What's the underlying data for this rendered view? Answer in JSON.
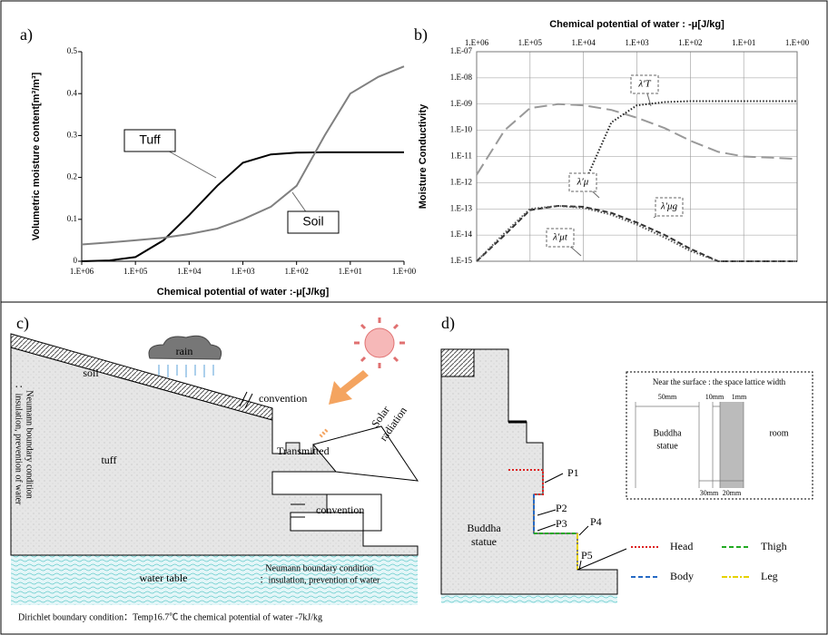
{
  "chart_data": [
    {
      "type": "line",
      "title": "a)",
      "x_label": "Chemical potential of water :-μ[J/kg]",
      "y_label": "Volumetric moisture content[m³/m³]",
      "xscale": "log",
      "xaxis_position": "bottom",
      "grid": false,
      "x": [
        1000000,
        300000,
        100000,
        30000,
        10000,
        3000,
        1000,
        300,
        100,
        30,
        10,
        3,
        1
      ],
      "xlim": [
        1000000,
        1
      ],
      "xticks": [
        {
          "value": 1000000,
          "label": "1.E+06"
        },
        {
          "value": 100000,
          "label": "1.E+05"
        },
        {
          "value": 10000,
          "label": "1.E+04"
        },
        {
          "value": 1000,
          "label": "1.E+03"
        },
        {
          "value": 100,
          "label": "1.E+02"
        },
        {
          "value": 10,
          "label": "1.E+01"
        },
        {
          "value": 1,
          "label": "1.E+00"
        }
      ],
      "ylim": [
        0,
        0.5
      ],
      "yticks": [
        0,
        0.1,
        0.2,
        0.3,
        0.4,
        0.5
      ],
      "series": [
        {
          "name": "Tuff",
          "color": "#000000",
          "dash": "solid",
          "values": [
            0,
            0.002,
            0.01,
            0.05,
            0.11,
            0.18,
            0.235,
            0.255,
            0.259,
            0.26,
            0.26,
            0.26,
            0.26
          ]
        },
        {
          "name": "Soil",
          "color": "#808080",
          "dash": "solid",
          "values": [
            0.04,
            0.045,
            0.05,
            0.056,
            0.065,
            0.078,
            0.1,
            0.13,
            0.18,
            0.3,
            0.4,
            0.44,
            0.465
          ]
        }
      ]
    },
    {
      "type": "line",
      "title": "b)",
      "x_label": "Chemical potential of water : -μ[J/kg]",
      "y_label": "Moisture Conductivity",
      "xscale": "log",
      "yscale": "log",
      "xaxis_position": "top",
      "grid": true,
      "x": [
        1000000,
        300000,
        100000,
        30000,
        10000,
        3000,
        1000,
        300,
        100,
        30,
        10,
        3,
        1
      ],
      "xlim": [
        1000000,
        1
      ],
      "xticks": [
        {
          "value": 1000000,
          "label": "1.E+06"
        },
        {
          "value": 100000,
          "label": "1.E+05"
        },
        {
          "value": 10000,
          "label": "1.E+04"
        },
        {
          "value": 1000,
          "label": "1.E+03"
        },
        {
          "value": 100,
          "label": "1.E+02"
        },
        {
          "value": 10,
          "label": "1.E+01"
        },
        {
          "value": 1,
          "label": "1.E+00"
        }
      ],
      "ylim": [
        1e-15,
        1e-07
      ],
      "yticks": [
        {
          "value": 1e-07,
          "label": "1.E-07"
        },
        {
          "value": 1e-08,
          "label": "1.E-08"
        },
        {
          "value": 1e-09,
          "label": "1.E-09"
        },
        {
          "value": 1e-10,
          "label": "1.E-10"
        },
        {
          "value": 1e-11,
          "label": "1.E-11"
        },
        {
          "value": 1e-12,
          "label": "1.E-12"
        },
        {
          "value": 1e-13,
          "label": "1.E-13"
        },
        {
          "value": 1e-14,
          "label": "1.E-14"
        },
        {
          "value": 1e-15,
          "label": "1.E-15"
        }
      ],
      "series": [
        {
          "name": "λ′T",
          "color": "#999999",
          "dash": "longdash",
          "values": [
            2e-12,
            1e-10,
            7e-10,
            1e-09,
            9e-10,
            6e-10,
            3e-10,
            1.2e-10,
            4e-11,
            1.5e-11,
            1e-11,
            9e-12,
            8e-12
          ]
        },
        {
          "name": "λ′μ",
          "color": "#222222",
          "dash": "dotted",
          "values": [
            null,
            null,
            null,
            null,
            8e-13,
            2e-10,
            9e-10,
            1.2e-09,
            1.3e-09,
            1.3e-09,
            1.3e-09,
            1.3e-09,
            1.3e-09
          ]
        },
        {
          "name": "λ′μg",
          "color": "#333333",
          "dash": "dashed",
          "values": [
            1e-15,
            1e-14,
            9e-14,
            1.3e-13,
            1.2e-13,
            7e-14,
            3e-14,
            1e-14,
            3e-15,
            1e-15,
            1e-15,
            1e-15,
            1e-15
          ]
        },
        {
          "name": "λ′μt",
          "color": "#555555",
          "dash": "dotted",
          "values": [
            1e-15,
            1.2e-14,
            1e-13,
            1.3e-13,
            1.1e-13,
            6e-14,
            2.5e-14,
            8e-15,
            2.5e-15,
            1e-15,
            1e-15,
            1e-15,
            1e-15
          ]
        }
      ]
    }
  ],
  "panels": {
    "c": {
      "label": "c)",
      "rain": "rain",
      "soil": "soil",
      "convention_top": "convention",
      "solar": [
        "Solar",
        "radiation"
      ],
      "transmitted": "Transmitted",
      "tuff": "tuff",
      "convention_mid": "convention",
      "neumann_left": [
        "Neumann boundary condition",
        "：insulation, prevention of water"
      ],
      "water_table": "water table",
      "neumann_bottom": [
        "Neumann boundary condition",
        "：insulation, prevention of water"
      ],
      "dirichlet": "Dirichlet boundary condition：Temp16.7℃   the chemical potential of water -7kJ/kg"
    },
    "d": {
      "label": "d)",
      "points": [
        "P1",
        "P2",
        "P3",
        "P4",
        "P5"
      ],
      "statue": [
        "Buddha",
        "statue"
      ],
      "inset": {
        "title": "Near the surface : the space lattice width",
        "widths": [
          "50mm",
          "10mm",
          "1mm",
          "30mm",
          "20mm"
        ],
        "left": [
          "Buddha",
          "statue"
        ],
        "right": "room"
      },
      "legend": [
        "Head",
        "Thigh",
        "Body",
        "Leg"
      ]
    }
  }
}
